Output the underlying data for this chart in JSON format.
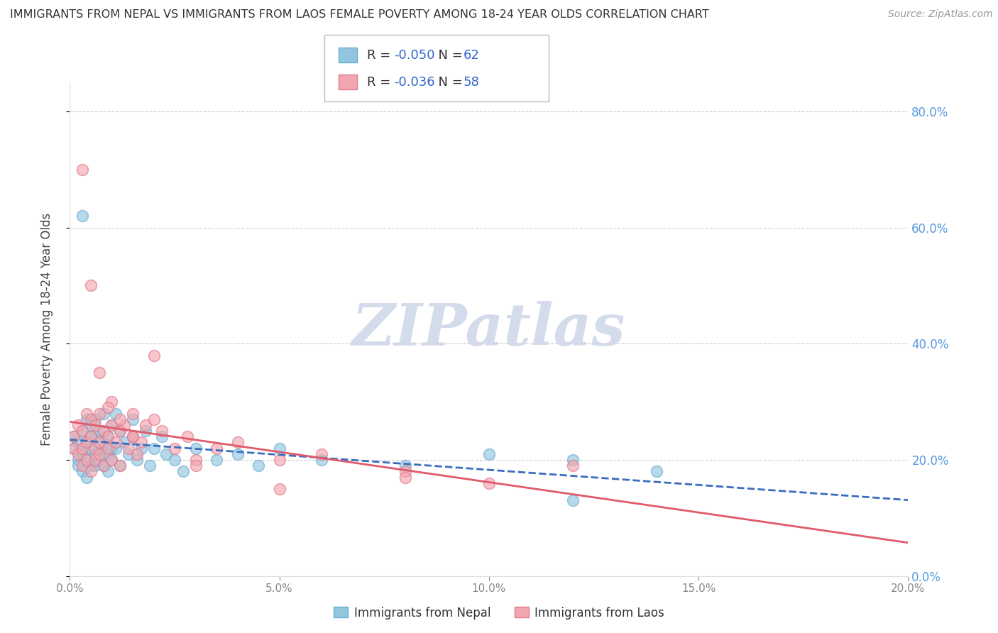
{
  "title": "IMMIGRANTS FROM NEPAL VS IMMIGRANTS FROM LAOS FEMALE POVERTY AMONG 18-24 YEAR OLDS CORRELATION CHART",
  "source": "Source: ZipAtlas.com",
  "ylabel": "Female Poverty Among 18-24 Year Olds",
  "xlabel_nepal": "Immigrants from Nepal",
  "xlabel_laos": "Immigrants from Laos",
  "xlim": [
    0.0,
    0.2
  ],
  "ylim": [
    0.0,
    0.85
  ],
  "yticks": [
    0.0,
    0.2,
    0.4,
    0.6,
    0.8
  ],
  "xticks": [
    0.0,
    0.05,
    0.1,
    0.15,
    0.2
  ],
  "nepal_R": -0.05,
  "nepal_N": 62,
  "laos_R": -0.036,
  "laos_N": 58,
  "nepal_color": "#92c5de",
  "laos_color": "#f4a6b0",
  "nepal_edge_color": "#6baed6",
  "laos_edge_color": "#e07b8a",
  "nepal_line_color": "#3a6dbf",
  "laos_line_color": "#e05a6a",
  "watermark_text": "ZIPatlas",
  "watermark_color": "#d0d8e8",
  "background_color": "#ffffff",
  "grid_color": "#cccccc",
  "tick_label_color": "#5599dd",
  "nepal_scatter_x": [
    0.001,
    0.001,
    0.002,
    0.002,
    0.002,
    0.003,
    0.003,
    0.003,
    0.003,
    0.004,
    0.004,
    0.004,
    0.004,
    0.005,
    0.005,
    0.005,
    0.005,
    0.006,
    0.006,
    0.006,
    0.006,
    0.007,
    0.007,
    0.007,
    0.008,
    0.008,
    0.008,
    0.009,
    0.009,
    0.009,
    0.01,
    0.01,
    0.01,
    0.011,
    0.011,
    0.012,
    0.012,
    0.013,
    0.014,
    0.015,
    0.015,
    0.016,
    0.017,
    0.018,
    0.019,
    0.02,
    0.022,
    0.023,
    0.025,
    0.027,
    0.03,
    0.035,
    0.04,
    0.045,
    0.05,
    0.06,
    0.08,
    0.1,
    0.12,
    0.14,
    0.003,
    0.12
  ],
  "nepal_scatter_y": [
    0.24,
    0.22,
    0.2,
    0.23,
    0.19,
    0.22,
    0.25,
    0.18,
    0.21,
    0.27,
    0.2,
    0.23,
    0.17,
    0.24,
    0.19,
    0.22,
    0.26,
    0.21,
    0.24,
    0.19,
    0.27,
    0.22,
    0.2,
    0.25,
    0.23,
    0.19,
    0.28,
    0.21,
    0.24,
    0.18,
    0.22,
    0.26,
    0.2,
    0.28,
    0.22,
    0.25,
    0.19,
    0.23,
    0.21,
    0.27,
    0.24,
    0.2,
    0.22,
    0.25,
    0.19,
    0.22,
    0.24,
    0.21,
    0.2,
    0.18,
    0.22,
    0.2,
    0.21,
    0.19,
    0.22,
    0.2,
    0.19,
    0.21,
    0.2,
    0.18,
    0.62,
    0.13
  ],
  "laos_scatter_x": [
    0.001,
    0.001,
    0.002,
    0.002,
    0.003,
    0.003,
    0.003,
    0.004,
    0.004,
    0.004,
    0.005,
    0.005,
    0.005,
    0.006,
    0.006,
    0.006,
    0.007,
    0.007,
    0.007,
    0.008,
    0.008,
    0.009,
    0.009,
    0.01,
    0.01,
    0.01,
    0.011,
    0.012,
    0.012,
    0.013,
    0.014,
    0.015,
    0.015,
    0.016,
    0.017,
    0.018,
    0.02,
    0.022,
    0.025,
    0.028,
    0.03,
    0.035,
    0.04,
    0.05,
    0.06,
    0.08,
    0.1,
    0.12,
    0.003,
    0.005,
    0.007,
    0.009,
    0.012,
    0.015,
    0.02,
    0.03,
    0.05,
    0.08
  ],
  "laos_scatter_y": [
    0.24,
    0.22,
    0.21,
    0.26,
    0.22,
    0.25,
    0.19,
    0.23,
    0.28,
    0.2,
    0.24,
    0.18,
    0.27,
    0.22,
    0.26,
    0.2,
    0.23,
    0.28,
    0.21,
    0.25,
    0.19,
    0.24,
    0.22,
    0.26,
    0.2,
    0.3,
    0.23,
    0.25,
    0.19,
    0.26,
    0.22,
    0.24,
    0.28,
    0.21,
    0.23,
    0.26,
    0.27,
    0.25,
    0.22,
    0.24,
    0.2,
    0.22,
    0.23,
    0.2,
    0.21,
    0.18,
    0.16,
    0.19,
    0.7,
    0.5,
    0.35,
    0.29,
    0.27,
    0.24,
    0.38,
    0.19,
    0.15,
    0.17
  ],
  "legend_box_color": "#ffffff",
  "legend_border_color": "#bbbbbb"
}
